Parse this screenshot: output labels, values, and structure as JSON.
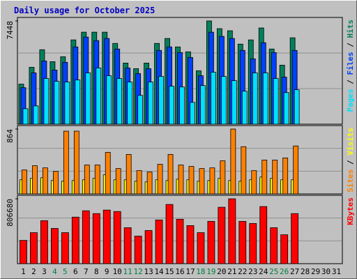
{
  "chart_data": {
    "type": "bar",
    "title": "Daily usage for October 2025",
    "categories": [
      "1",
      "2",
      "3",
      "4",
      "5",
      "6",
      "7",
      "8",
      "9",
      "10",
      "11",
      "12",
      "13",
      "14",
      "15",
      "16",
      "17",
      "18",
      "19",
      "20",
      "21",
      "22",
      "23",
      "24",
      "25",
      "26",
      "27",
      "28",
      "29",
      "30",
      "31"
    ],
    "category_colors": [
      "#000000",
      "#000000",
      "#000000",
      "#008040",
      "#008040",
      "#000000",
      "#000000",
      "#000000",
      "#000000",
      "#000000",
      "#008040",
      "#008040",
      "#000000",
      "#000000",
      "#000000",
      "#000000",
      "#000000",
      "#008040",
      "#008040",
      "#000000",
      "#000000",
      "#000000",
      "#000000",
      "#000000",
      "#008040",
      "#008040",
      "#000000",
      "#000000",
      "#000000",
      "#000000",
      "#000000"
    ],
    "legend_separator": " / ",
    "panels": [
      {
        "ylim": [
          0,
          7448
        ],
        "yticks": [
          7448
        ],
        "series": [
          {
            "name": "Pages",
            "color": "#00e0ff",
            "values": [
              1115,
              1317,
              3293,
              3091,
              3040,
              3192,
              3699,
              4053,
              3496,
              3293,
              3040,
              2077,
              3040,
              3445,
              2736,
              2685,
              1571,
              2787,
              3749,
              3445,
              3141,
              2381,
              3699,
              3699,
              3293,
              2280,
              2483,
              null,
              null,
              null,
              null
            ]
          },
          {
            "name": "Files",
            "color": "#0040ff",
            "values": [
              2635,
              3699,
              4560,
              3902,
              4459,
              5573,
              6283,
              6029,
              6181,
              5421,
              4053,
              3648,
              4003,
              5320,
              5573,
              5168,
              4813,
              3496,
              6637,
              6333,
              6181,
              5320,
              4712,
              5877,
              5168,
              3395,
              5320,
              null,
              null,
              null,
              null
            ]
          },
          {
            "name": "Hits",
            "color": "#00805c",
            "values": [
              2888,
              4104,
              5371,
              4509,
              4864,
              6080,
              6637,
              6637,
              6637,
              5826,
              4408,
              4003,
              4408,
              5826,
              6181,
              5573,
              5219,
              3851,
              7448,
              6891,
              6739,
              5776,
              6080,
              6941,
              5421,
              4256,
              6232,
              null,
              null,
              null,
              null
            ]
          }
        ]
      },
      {
        "ylim": [
          0,
          864
        ],
        "yticks": [
          864
        ],
        "series": [
          {
            "name": "Sites",
            "color": "#ff8000",
            "values": [
              319,
              376,
              347,
              300,
              836,
              836,
              385,
              385,
              554,
              338,
              526,
              310,
              291,
              394,
              526,
              385,
              366,
              338,
              347,
              441,
              864,
              629,
              310,
              451,
              451,
              479,
              639,
              null,
              null,
              null,
              null
            ]
          },
          {
            "name": "Visits",
            "color": "#ffff00",
            "values": [
              188,
              207,
              216,
              178,
              169,
              178,
              188,
              207,
              254,
              188,
              188,
              169,
              160,
              188,
              178,
              197,
              188,
              169,
              178,
              207,
              178,
              169,
              188,
              225,
              207,
              188,
              188,
              null,
              null,
              null,
              null
            ]
          }
        ]
      },
      {
        "ylim": [
          0,
          806680
        ],
        "yticks": [
          806680
        ],
        "series": [
          {
            "name": "KBytes",
            "color": "#ff0000",
            "values": [
              289344,
              385792,
              534848,
              438400,
              385792,
              578688,
              657600,
              622528,
              666368,
              648832,
              447168,
              341952,
              412096,
              543616,
              736512,
              552384,
              473472,
              385792,
              526080,
              701440,
              806680,
              526080,
              499776,
              710208,
              447168,
              359488,
              622528,
              null,
              null,
              null,
              null
            ]
          }
        ]
      }
    ]
  }
}
